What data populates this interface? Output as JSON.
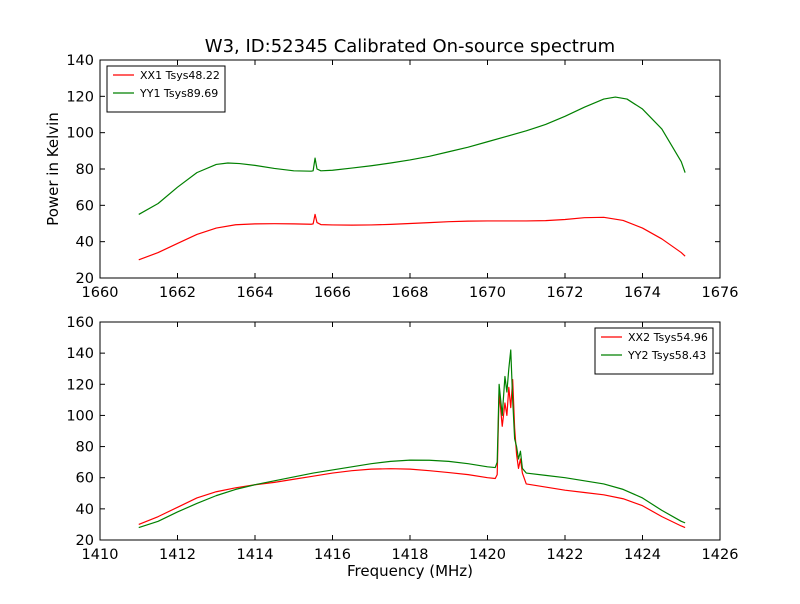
{
  "title": "W3, ID:52345 Calibrated On-source spectrum",
  "chart_data": [
    {
      "type": "line",
      "xlabel": "",
      "ylabel": "Power in Kelvin",
      "xlim": [
        1660,
        1676
      ],
      "ylim": [
        20,
        140
      ],
      "xticks": [
        1660,
        1662,
        1664,
        1666,
        1668,
        1670,
        1672,
        1674,
        1676
      ],
      "yticks": [
        20,
        40,
        60,
        80,
        100,
        120,
        140
      ],
      "grid": false,
      "legend": "top-left",
      "series": [
        {
          "name": "XX1 Tsys48.22",
          "color": "#ff0000",
          "points": [
            [
              1661.0,
              30
            ],
            [
              1661.5,
              34
            ],
            [
              1662.0,
              39
            ],
            [
              1662.5,
              44
            ],
            [
              1663.0,
              47.5
            ],
            [
              1663.5,
              49.3
            ],
            [
              1664.0,
              49.8
            ],
            [
              1664.5,
              49.9
            ],
            [
              1665.0,
              49.8
            ],
            [
              1665.45,
              49.6
            ],
            [
              1665.5,
              49.8
            ],
            [
              1665.55,
              55
            ],
            [
              1665.6,
              50.5
            ],
            [
              1665.7,
              49.4
            ],
            [
              1666.0,
              49.2
            ],
            [
              1666.5,
              49.1
            ],
            [
              1667.0,
              49.2
            ],
            [
              1667.5,
              49.5
            ],
            [
              1668.0,
              50.0
            ],
            [
              1668.5,
              50.5
            ],
            [
              1669.0,
              51.0
            ],
            [
              1669.5,
              51.3
            ],
            [
              1670.0,
              51.4
            ],
            [
              1670.5,
              51.4
            ],
            [
              1671.0,
              51.4
            ],
            [
              1671.5,
              51.6
            ],
            [
              1672.0,
              52.2
            ],
            [
              1672.5,
              53.2
            ],
            [
              1673.0,
              53.4
            ],
            [
              1673.5,
              51.7
            ],
            [
              1674.0,
              47.5
            ],
            [
              1674.5,
              41.5
            ],
            [
              1675.0,
              34
            ],
            [
              1675.1,
              32
            ]
          ]
        },
        {
          "name": "YY1 Tsys89.69",
          "color": "#008000",
          "points": [
            [
              1661.0,
              55
            ],
            [
              1661.5,
              61
            ],
            [
              1662.0,
              70
            ],
            [
              1662.5,
              78
            ],
            [
              1663.0,
              82.5
            ],
            [
              1663.3,
              83.3
            ],
            [
              1663.6,
              83.0
            ],
            [
              1664.0,
              82
            ],
            [
              1664.5,
              80.3
            ],
            [
              1665.0,
              79
            ],
            [
              1665.45,
              78.8
            ],
            [
              1665.5,
              79
            ],
            [
              1665.55,
              86
            ],
            [
              1665.6,
              80
            ],
            [
              1665.7,
              79
            ],
            [
              1666.0,
              79.3
            ],
            [
              1666.5,
              80.5
            ],
            [
              1667.0,
              81.8
            ],
            [
              1667.5,
              83.3
            ],
            [
              1668.0,
              85
            ],
            [
              1668.5,
              87
            ],
            [
              1669.0,
              89.5
            ],
            [
              1669.5,
              92
            ],
            [
              1670.0,
              95
            ],
            [
              1670.5,
              98
            ],
            [
              1671.0,
              101
            ],
            [
              1671.5,
              104.5
            ],
            [
              1672.0,
              109
            ],
            [
              1672.5,
              114
            ],
            [
              1673.0,
              118.5
            ],
            [
              1673.3,
              119.6
            ],
            [
              1673.6,
              118.5
            ],
            [
              1674.0,
              113
            ],
            [
              1674.5,
              102
            ],
            [
              1675.0,
              84
            ],
            [
              1675.1,
              78
            ]
          ]
        }
      ]
    },
    {
      "type": "line",
      "xlabel": "Frequency (MHz)",
      "ylabel": "",
      "xlim": [
        1410,
        1426
      ],
      "ylim": [
        20,
        160
      ],
      "xticks": [
        1410,
        1412,
        1414,
        1416,
        1418,
        1420,
        1422,
        1424,
        1426
      ],
      "yticks": [
        20,
        40,
        60,
        80,
        100,
        120,
        140,
        160
      ],
      "grid": false,
      "legend": "top-right",
      "series": [
        {
          "name": "XX2 Tsys54.96",
          "color": "#ff0000",
          "points": [
            [
              1411.0,
              30
            ],
            [
              1411.5,
              35
            ],
            [
              1412.0,
              41
            ],
            [
              1412.5,
              47
            ],
            [
              1413.0,
              51
            ],
            [
              1413.5,
              53.5
            ],
            [
              1414.0,
              55.5
            ],
            [
              1414.5,
              57
            ],
            [
              1415.0,
              59
            ],
            [
              1415.5,
              61
            ],
            [
              1416.0,
              63
            ],
            [
              1416.5,
              64.5
            ],
            [
              1417.0,
              65.5
            ],
            [
              1417.5,
              65.8
            ],
            [
              1418.0,
              65.5
            ],
            [
              1418.5,
              64.5
            ],
            [
              1419.0,
              63.3
            ],
            [
              1419.5,
              62
            ],
            [
              1420.0,
              60
            ],
            [
              1420.2,
              59.5
            ],
            [
              1420.25,
              62
            ],
            [
              1420.3,
              115
            ],
            [
              1420.38,
              93
            ],
            [
              1420.45,
              108
            ],
            [
              1420.5,
              100
            ],
            [
              1420.55,
              118
            ],
            [
              1420.6,
              105
            ],
            [
              1420.65,
              123
            ],
            [
              1420.7,
              92
            ],
            [
              1420.75,
              75
            ],
            [
              1420.8,
              66
            ],
            [
              1420.85,
              72
            ],
            [
              1420.9,
              63
            ],
            [
              1421.0,
              56
            ],
            [
              1421.5,
              54
            ],
            [
              1422.0,
              52
            ],
            [
              1422.5,
              50.5
            ],
            [
              1423.0,
              49
            ],
            [
              1423.5,
              46.5
            ],
            [
              1424.0,
              42
            ],
            [
              1424.5,
              35
            ],
            [
              1425.0,
              29
            ],
            [
              1425.1,
              28
            ]
          ]
        },
        {
          "name": "YY2 Tsys58.43",
          "color": "#008000",
          "points": [
            [
              1411.0,
              28
            ],
            [
              1411.5,
              32
            ],
            [
              1412.0,
              38
            ],
            [
              1412.5,
              43.5
            ],
            [
              1413.0,
              48.5
            ],
            [
              1413.5,
              52.5
            ],
            [
              1414.0,
              55.5
            ],
            [
              1414.5,
              58
            ],
            [
              1415.0,
              60.5
            ],
            [
              1415.5,
              63
            ],
            [
              1416.0,
              65
            ],
            [
              1416.5,
              67
            ],
            [
              1417.0,
              69
            ],
            [
              1417.5,
              70.5
            ],
            [
              1418.0,
              71.3
            ],
            [
              1418.5,
              71.2
            ],
            [
              1419.0,
              70.5
            ],
            [
              1419.5,
              69
            ],
            [
              1420.0,
              67
            ],
            [
              1420.2,
              66.5
            ],
            [
              1420.25,
              70
            ],
            [
              1420.3,
              120
            ],
            [
              1420.38,
              100
            ],
            [
              1420.45,
              125
            ],
            [
              1420.5,
              115
            ],
            [
              1420.55,
              130
            ],
            [
              1420.6,
              142
            ],
            [
              1420.65,
              110
            ],
            [
              1420.7,
              85
            ],
            [
              1420.75,
              80
            ],
            [
              1420.8,
              72
            ],
            [
              1420.85,
              77
            ],
            [
              1420.9,
              66
            ],
            [
              1421.0,
              63
            ],
            [
              1421.5,
              61.5
            ],
            [
              1422.0,
              60
            ],
            [
              1422.5,
              58
            ],
            [
              1423.0,
              56
            ],
            [
              1423.5,
              52.5
            ],
            [
              1424.0,
              47
            ],
            [
              1424.5,
              39
            ],
            [
              1425.0,
              32
            ],
            [
              1425.1,
              31
            ]
          ]
        }
      ]
    }
  ],
  "colors": {
    "axis": "#000000",
    "background": "#ffffff"
  }
}
